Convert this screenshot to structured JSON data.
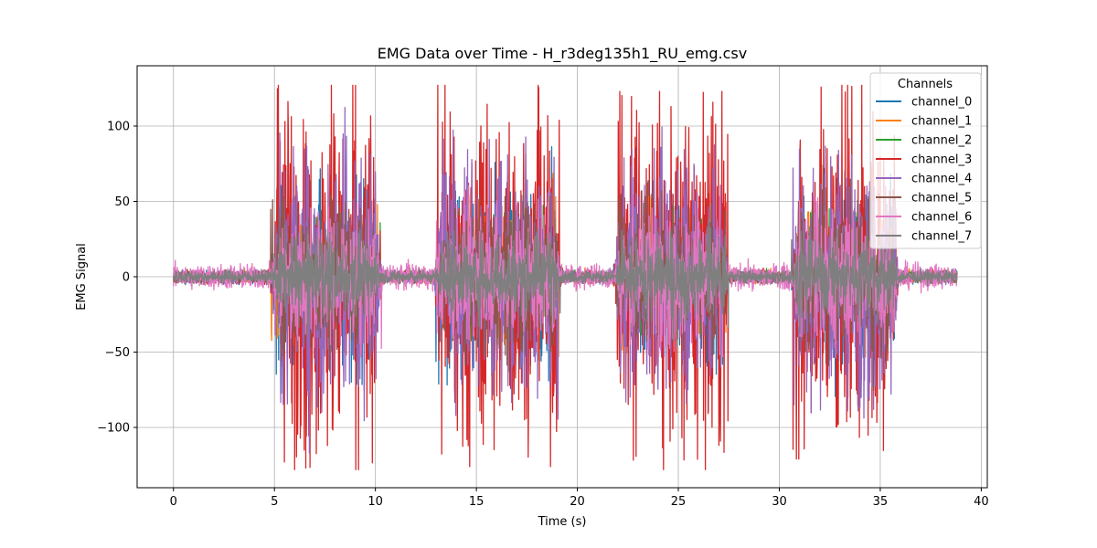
{
  "chart_data": {
    "type": "line",
    "title": "EMG Data over Time - H_r3deg135h1_RU_emg.csv",
    "xlabel": "Time (s)",
    "ylabel": "EMG Signal",
    "xlim": [
      -1.8,
      40.3
    ],
    "ylim": [
      -140,
      140
    ],
    "xticks": [
      0,
      5,
      10,
      15,
      20,
      25,
      30,
      35,
      40
    ],
    "yticks": [
      -100,
      -50,
      0,
      50,
      100
    ],
    "xtick_labels": [
      "0",
      "5",
      "10",
      "15",
      "20",
      "25",
      "30",
      "35",
      "40"
    ],
    "ytick_labels": [
      "−100",
      "−50",
      "0",
      "50",
      "100"
    ],
    "grid": true,
    "legend_title": "Channels",
    "legend_position": "top-right",
    "x_range": [
      0,
      38.8
    ],
    "active_bursts": [
      {
        "start": 4.8,
        "end": 10.3,
        "max": 127,
        "min": -128
      },
      {
        "start": 12.9,
        "end": 19.2,
        "max": 127,
        "min": -126
      },
      {
        "start": 21.8,
        "end": 27.5,
        "max": 123,
        "min": -128
      },
      {
        "start": 30.6,
        "end": 35.9,
        "max": 127,
        "min": -121
      }
    ],
    "series": [
      {
        "name": "channel_0",
        "color": "#1f77b4",
        "rest_amp": 2,
        "burst_amp": 60
      },
      {
        "name": "channel_1",
        "color": "#ff7f0e",
        "rest_amp": 2,
        "burst_amp": 45
      },
      {
        "name": "channel_2",
        "color": "#2ca02c",
        "rest_amp": 2,
        "burst_amp": 40
      },
      {
        "name": "channel_3",
        "color": "#d62728",
        "rest_amp": 2,
        "burst_amp": 115
      },
      {
        "name": "channel_4",
        "color": "#9467bd",
        "rest_amp": 2,
        "burst_amp": 80
      },
      {
        "name": "channel_5",
        "color": "#8c564b",
        "rest_amp": 2,
        "burst_amp": 50
      },
      {
        "name": "channel_6",
        "color": "#e377c2",
        "rest_amp": 4,
        "burst_amp": 45
      },
      {
        "name": "channel_7",
        "color": "#7f7f7f",
        "rest_amp": 2,
        "burst_amp": 28
      }
    ]
  }
}
